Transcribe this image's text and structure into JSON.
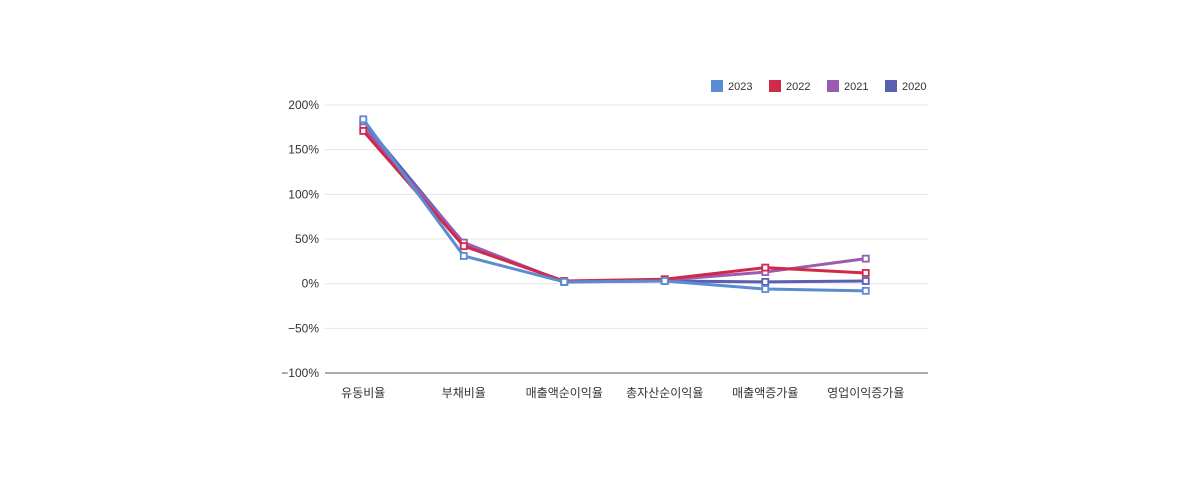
{
  "chart_data": {
    "type": "line",
    "categories": [
      "유동비율",
      "부채비율",
      "매출액순이익율",
      "총자산순이익율",
      "매출액증가율",
      "영업이익증가율"
    ],
    "yticks": [
      "200%",
      "150%",
      "100%",
      "50%",
      "0%",
      "−50%",
      "−100%"
    ],
    "ylim": [
      -100,
      200
    ],
    "grid": true,
    "legend_position": "top-right",
    "series": [
      {
        "name": "2023",
        "color": "#5b8bd0",
        "values": [
          184,
          31,
          2,
          3,
          -6,
          -8
        ]
      },
      {
        "name": "2022",
        "color": "#d0294a",
        "values": [
          171,
          42,
          3,
          5,
          18,
          12
        ]
      },
      {
        "name": "2021",
        "color": "#9a5bb0",
        "values": [
          175,
          46,
          2,
          4,
          13,
          28
        ]
      },
      {
        "name": "2020",
        "color": "#5a5fb0",
        "values": [
          181,
          45,
          2,
          3,
          2,
          3
        ]
      }
    ]
  }
}
